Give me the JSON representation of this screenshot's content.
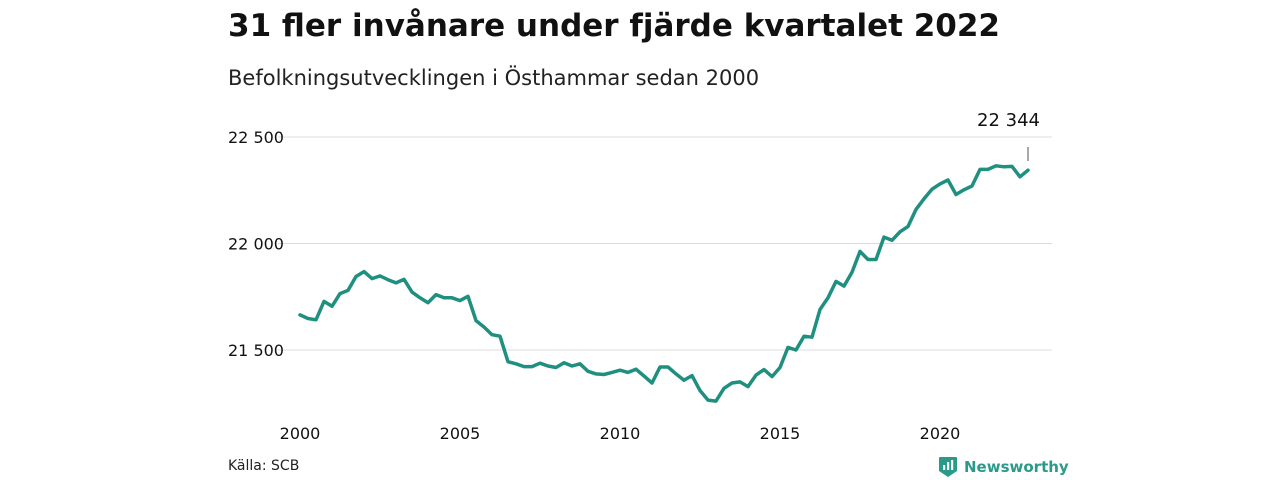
{
  "header": {
    "title": "31 fler invånare under fjärde kvartalet 2022",
    "subtitle": "Befolkningsutvecklingen i Östhammar sedan 2000"
  },
  "footer": {
    "source": "Källa: SCB",
    "brand": "Newsworthy",
    "brand_icon": "newsworthy-logo-icon"
  },
  "colors": {
    "line": "#1f9080",
    "grid": "#dcdcdc",
    "brand": "#2a9a8a"
  },
  "chart_data": {
    "type": "line",
    "title": "31 fler invånare under fjärde kvartalet 2022",
    "subtitle": "Befolkningsutvecklingen i Östhammar sedan 2000",
    "xlabel": "",
    "ylabel": "",
    "x_ticks": [
      "2000",
      "2005",
      "2010",
      "2015",
      "2020"
    ],
    "y_ticks": [
      "21 500",
      "22 000",
      "22 500"
    ],
    "ylim": [
      21300,
      22500
    ],
    "grid": true,
    "last_label": "22 344",
    "series": [
      {
        "x": [
          "2000K1",
          "2000K2",
          "2000K3",
          "2000K4",
          "2001K1",
          "2001K2",
          "2001K3",
          "2001K4",
          "2002K1",
          "2002K2",
          "2002K3",
          "2002K4",
          "2003K1",
          "2003K2",
          "2003K3",
          "2003K4",
          "2004K1",
          "2004K2",
          "2004K3",
          "2004K4",
          "2005K1",
          "2005K2",
          "2005K3",
          "2005K4",
          "2006K1",
          "2006K2",
          "2006K3",
          "2006K4",
          "2007K1",
          "2007K2",
          "2007K3",
          "2007K4",
          "2008K1",
          "2008K2",
          "2008K3",
          "2008K4",
          "2009K1",
          "2009K2",
          "2009K3",
          "2009K4",
          "2010K1",
          "2010K2",
          "2010K3",
          "2010K4",
          "2011K1",
          "2011K2",
          "2011K3",
          "2011K4",
          "2012K1",
          "2012K2",
          "2012K3",
          "2012K4",
          "2013K1",
          "2013K2",
          "2013K3",
          "2013K4",
          "2014K1",
          "2014K2",
          "2014K3",
          "2014K4",
          "2015K1",
          "2015K2",
          "2015K3",
          "2015K4",
          "2016K1",
          "2016K2",
          "2016K3",
          "2016K4",
          "2017K1",
          "2017K2",
          "2017K3",
          "2017K4",
          "2018K1",
          "2018K2",
          "2018K3",
          "2018K4",
          "2019K1",
          "2019K2",
          "2019K3",
          "2019K4",
          "2020K1",
          "2020K2",
          "2020K3",
          "2020K4",
          "2021K1",
          "2021K2",
          "2021K3",
          "2021K4",
          "2022K1",
          "2022K2",
          "2022K3",
          "2022K4"
        ],
        "values": [
          21665,
          21648,
          21642,
          21728,
          21705,
          21765,
          21780,
          21845,
          21868,
          21835,
          21848,
          21830,
          21815,
          21832,
          21772,
          21745,
          21722,
          21760,
          21745,
          21745,
          21732,
          21752,
          21638,
          21608,
          21572,
          21565,
          21445,
          21435,
          21422,
          21422,
          21438,
          21425,
          21418,
          21440,
          21425,
          21435,
          21400,
          21388,
          21385,
          21395,
          21405,
          21395,
          21410,
          21378,
          21345,
          21420,
          21420,
          21388,
          21358,
          21380,
          21310,
          21265,
          21260,
          21320,
          21345,
          21350,
          21328,
          21382,
          21408,
          21375,
          21418,
          21512,
          21500,
          21565,
          21560,
          21690,
          21745,
          21822,
          21800,
          21865,
          21963,
          21925,
          21925,
          22030,
          22015,
          22055,
          22080,
          22160,
          22210,
          22255,
          22280,
          22298,
          22230,
          22252,
          22270,
          22348,
          22348,
          22365,
          22360,
          22362,
          22313,
          22344
        ]
      }
    ]
  }
}
